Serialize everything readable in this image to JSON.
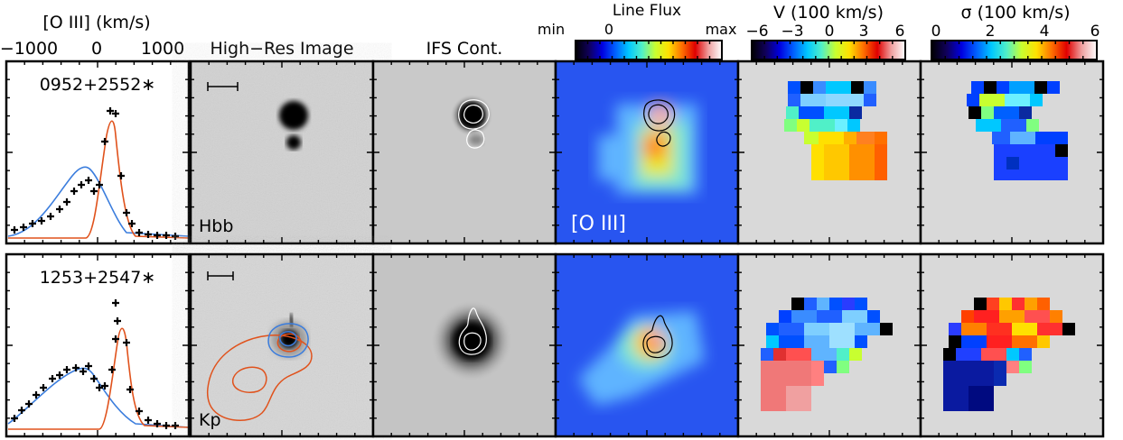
{
  "header": {
    "spectrum_axis_label": "[O III] (km/s)",
    "spectrum_ticks": [
      "−1000",
      "0",
      "1000"
    ],
    "col_image": "High−Res Image",
    "col_ifs": "IFS Cont.",
    "col_flux": "Line Flux",
    "flux_min": "min",
    "flux_zero": "0",
    "flux_max": "max",
    "col_velocity": "V (100 km/s)",
    "velocity_ticks": [
      "−6",
      "−3",
      "0",
      "3",
      "6"
    ],
    "col_sigma": "σ (100 km/s)",
    "sigma_ticks": [
      "0",
      "2",
      "4",
      "6"
    ]
  },
  "rows": [
    {
      "object": "0952+2552∗",
      "filter": "Hbb",
      "line_label": "[O III]"
    },
    {
      "object": "1253+2547∗",
      "filter": "Kp"
    }
  ],
  "colors": {
    "broad_component": "#3b7ddd",
    "narrow_component": "#e0521c",
    "panel_background": "#d9d9d9",
    "flux_background": "#2855f0"
  },
  "colorbars": {
    "flux": [
      "#000000",
      "#10005a",
      "#0000e0",
      "#0060ff",
      "#00c8ff",
      "#50f0c8",
      "#c8ff30",
      "#ffe000",
      "#ff7000",
      "#e00000",
      "#f0a0a0",
      "#ffffff"
    ],
    "velocity": [
      "#000000",
      "#10005a",
      "#0000e0",
      "#0060ff",
      "#00c8ff",
      "#50f0c8",
      "#c8ff30",
      "#ffe000",
      "#ff7000",
      "#e00000",
      "#f0a0a0",
      "#ffffff"
    ],
    "sigma": [
      "#000000",
      "#10005a",
      "#0000e0",
      "#0060ff",
      "#00c8ff",
      "#50f0c8",
      "#c8ff30",
      "#ffe000",
      "#ff7000",
      "#e00000",
      "#f0a0a0",
      "#ffffff"
    ]
  }
}
